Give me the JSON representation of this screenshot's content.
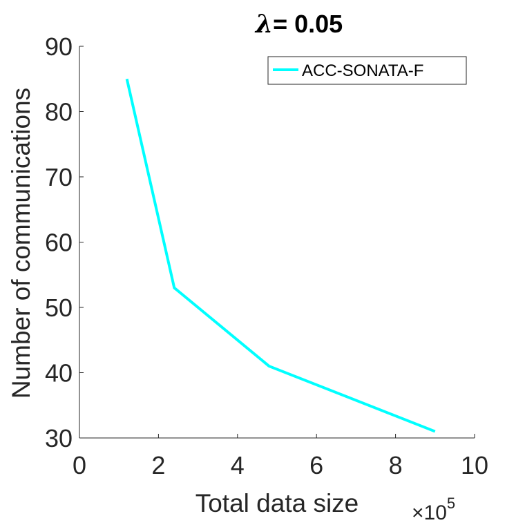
{
  "chart_data": {
    "type": "line",
    "title_symbol": "λ",
    "title_rest": "= 0.05",
    "xlabel": "Total data size",
    "ylabel": "Number of communications",
    "x_exponent_prefix": "×10",
    "x_exponent_power": "5",
    "xlim": [
      0,
      10
    ],
    "ylim": [
      30,
      90
    ],
    "xticks": [
      "0",
      "2",
      "4",
      "6",
      "8",
      "10"
    ],
    "yticks": [
      "30",
      "40",
      "50",
      "60",
      "70",
      "80",
      "90"
    ],
    "grid": false,
    "legend_position": "top-right",
    "series": [
      {
        "name": "ACC-SONATA-F",
        "color": "#00ffff",
        "x": [
          1.2,
          2.4,
          4.8,
          9.0
        ],
        "y": [
          85,
          53,
          41,
          31
        ]
      }
    ]
  }
}
